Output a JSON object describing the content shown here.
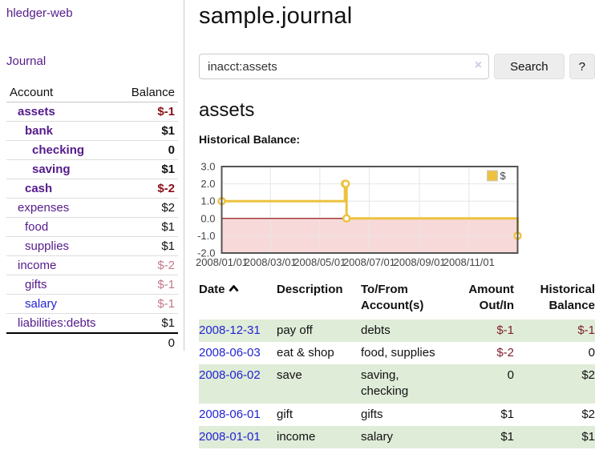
{
  "sidebar": {
    "brand": "hledger-web",
    "nav": {
      "journal": "Journal"
    },
    "accounts_table": {
      "headers": {
        "account": "Account",
        "balance": "Balance"
      },
      "rows": [
        {
          "name": "assets",
          "balance": "$-1",
          "indent": 1,
          "bold": true,
          "negative": true
        },
        {
          "name": "bank",
          "balance": "$1",
          "indent": 2,
          "bold": true,
          "negative": false
        },
        {
          "name": "checking",
          "balance": "0",
          "indent": 3,
          "bold": true,
          "negative": false
        },
        {
          "name": "saving",
          "balance": "$1",
          "indent": 3,
          "bold": true,
          "negative": false
        },
        {
          "name": "cash",
          "balance": "$-2",
          "indent": 2,
          "bold": true,
          "negative": true
        },
        {
          "name": "expenses",
          "balance": "$2",
          "indent": 1,
          "bold": false,
          "negative": false
        },
        {
          "name": "food",
          "balance": "$1",
          "indent": 2,
          "bold": false,
          "negative": false
        },
        {
          "name": "supplies",
          "balance": "$1",
          "indent": 2,
          "bold": false,
          "negative": false
        },
        {
          "name": "income",
          "balance": "$-2",
          "indent": 1,
          "bold": false,
          "negative": true
        },
        {
          "name": "gifts",
          "balance": "$-1",
          "indent": 2,
          "bold": false,
          "negative": true
        },
        {
          "name": "salary",
          "balance": "$-1",
          "indent": 2,
          "bold": false,
          "negative": true,
          "link_color": "blue"
        },
        {
          "name": "liabilities:debts",
          "balance": "$1",
          "indent": 1,
          "bold": false,
          "negative": false
        }
      ],
      "total": "0"
    }
  },
  "header": {
    "title": "sample.journal"
  },
  "search": {
    "query": "inacct:assets",
    "clear_icon": "×",
    "button": "Search",
    "help_button": "?"
  },
  "account_page": {
    "title": "assets",
    "chart_heading": "Historical Balance:"
  },
  "chart_data": {
    "type": "line",
    "title": "Historical Balance:",
    "ylim": [
      -2,
      3
    ],
    "yticks": [
      3.0,
      2.0,
      1.0,
      0.0,
      -1.0,
      -2.0
    ],
    "xticks": [
      {
        "label": "2008/01/01",
        "x": 0.0
      },
      {
        "label": "2008/03/01",
        "x": 0.1644
      },
      {
        "label": "2008/05/01",
        "x": 0.3315
      },
      {
        "label": "2008/07/01",
        "x": 0.4986
      },
      {
        "label": "2008/09/01",
        "x": 0.6685
      },
      {
        "label": "2008/11/01",
        "x": 0.8356
      }
    ],
    "series": [
      {
        "name": "$",
        "color": "#edc240",
        "step": true,
        "points": [
          {
            "date": "2008-01-01",
            "x": 0.0,
            "y": 1
          },
          {
            "date": "2008-06-01",
            "x": 0.4164,
            "y": 2
          },
          {
            "date": "2008-06-02",
            "x": 0.4192,
            "y": 2
          },
          {
            "date": "2008-06-03",
            "x": 0.4219,
            "y": 0
          },
          {
            "date": "2008-12-31",
            "x": 1.0,
            "y": -1
          }
        ]
      }
    ],
    "legend": {
      "label": "$",
      "position": "top-right"
    },
    "grid": true,
    "negative_region_color": "#f8d9d9",
    "zero_line_color": "#800000",
    "border_color": "#545454"
  },
  "transactions": {
    "headers": {
      "date": "Date",
      "description": "Description",
      "accounts": "To/From Account(s)",
      "amount": "Amount Out/In",
      "balance": "Historical Balance"
    },
    "rows": [
      {
        "date": "2008-12-31",
        "description": "pay off",
        "accounts": "debts",
        "amount": "$-1",
        "amount_negative": true,
        "balance": "$-1",
        "balance_negative": true
      },
      {
        "date": "2008-06-03",
        "description": "eat & shop",
        "accounts": "food, supplies",
        "amount": "$-2",
        "amount_negative": true,
        "balance": "0",
        "balance_negative": false
      },
      {
        "date": "2008-06-02",
        "description": "save",
        "accounts": "saving, checking",
        "amount": "0",
        "amount_negative": false,
        "balance": "$2",
        "balance_negative": false
      },
      {
        "date": "2008-06-01",
        "description": "gift",
        "accounts": "gifts",
        "amount": "$1",
        "amount_negative": false,
        "balance": "$2",
        "balance_negative": false
      },
      {
        "date": "2008-01-01",
        "description": "income",
        "accounts": "salary",
        "amount": "$1",
        "amount_negative": false,
        "balance": "$1",
        "balance_negative": false
      }
    ]
  },
  "colors": {
    "link_purple": "#551a8b",
    "link_blue": "#2323d3",
    "negative_strong": "#8b0f17",
    "negative_soft": "#c4788a",
    "negative_table": "#7e1f29",
    "row_green": "#dfecd8",
    "chart_line_gold": "#edc240",
    "chart_negative_pink": "#f8d9d9",
    "chart_zero_line": "#800000"
  }
}
